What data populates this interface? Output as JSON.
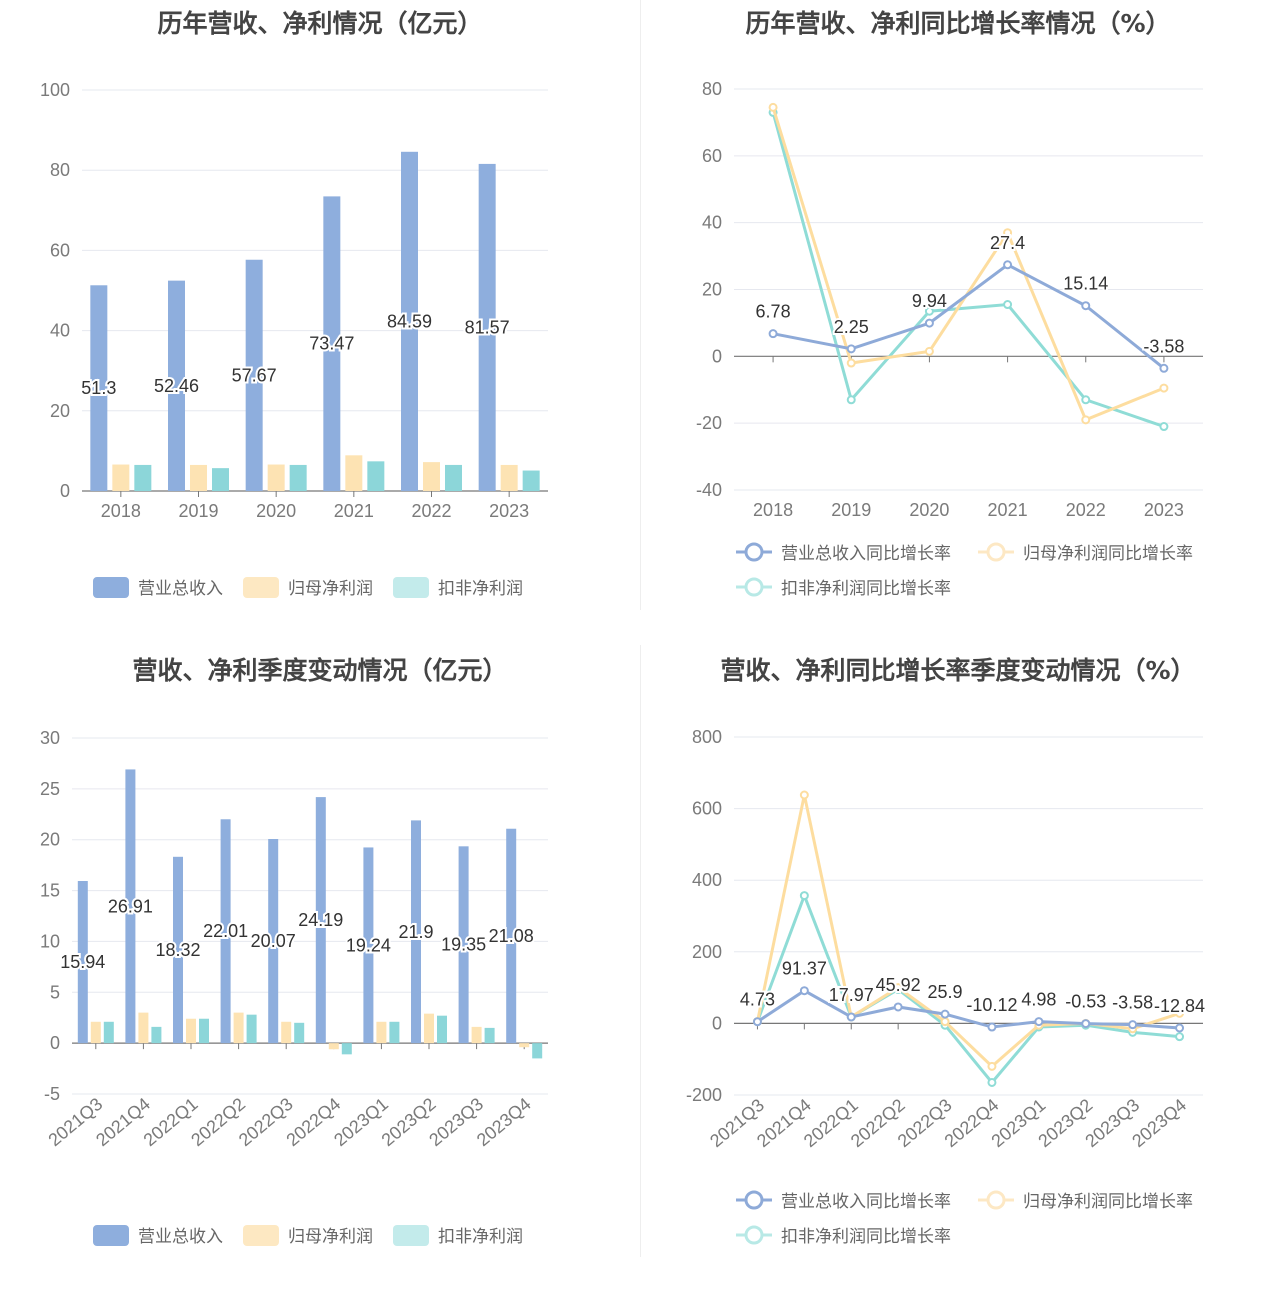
{
  "colors": {
    "revenue": "#8eaedd",
    "net_profit": "#fde3b3",
    "deducted_profit": "#8cd6d9",
    "rev_line": "#8eaad8",
    "np_line": "#fddd9f",
    "dp_line": "#8fdcd6"
  },
  "chart_data": [
    {
      "id": "annual-amounts",
      "type": "bar",
      "title": "历年营收、净利情况（亿元）",
      "categories": [
        "2018",
        "2019",
        "2020",
        "2021",
        "2022",
        "2023"
      ],
      "ylim": [
        0,
        100
      ],
      "yticks": [
        0,
        20,
        40,
        60,
        80,
        100
      ],
      "grid": true,
      "legend_position": "bottom",
      "series": [
        {
          "name": "营业总收入",
          "values": [
            51.3,
            52.46,
            57.67,
            73.47,
            84.59,
            81.57
          ],
          "labels": [
            "51.3",
            "52.46",
            "57.67",
            "73.47",
            "84.59",
            "81.57"
          ]
        },
        {
          "name": "归母净利润",
          "values": [
            6.6,
            6.5,
            6.6,
            8.9,
            7.2,
            6.5
          ]
        },
        {
          "name": "扣非净利润",
          "values": [
            6.5,
            5.7,
            6.5,
            7.4,
            6.5,
            5.1
          ]
        }
      ]
    },
    {
      "id": "annual-growth",
      "type": "line",
      "title": "历年营收、净利同比增长率情况（%）",
      "categories": [
        "2018",
        "2019",
        "2020",
        "2021",
        "2022",
        "2023"
      ],
      "ylim": [
        -40,
        80
      ],
      "yticks": [
        -40,
        -20,
        0,
        20,
        40,
        60,
        80
      ],
      "grid": true,
      "legend_position": "bottom",
      "series": [
        {
          "name": "营业总收入同比增长率",
          "values": [
            6.78,
            2.25,
            9.94,
            27.4,
            15.14,
            -3.58
          ],
          "labels": [
            "6.78",
            "2.25",
            "9.94",
            "27.4",
            "15.14",
            "-3.58"
          ]
        },
        {
          "name": "归母净利润同比增长率",
          "values": [
            74.5,
            -2,
            1.5,
            37,
            -19,
            -9.5
          ]
        },
        {
          "name": "扣非净利润同比增长率",
          "values": [
            73,
            -13,
            13.5,
            15.5,
            -13,
            -21
          ]
        }
      ]
    },
    {
      "id": "quarterly-amounts",
      "type": "bar",
      "title": "营收、净利季度变动情况（亿元）",
      "categories": [
        "2021Q3",
        "2021Q4",
        "2022Q1",
        "2022Q2",
        "2022Q3",
        "2022Q4",
        "2023Q1",
        "2023Q2",
        "2023Q3",
        "2023Q4"
      ],
      "ylim": [
        -5,
        30
      ],
      "yticks": [
        -5,
        0,
        5,
        10,
        15,
        20,
        25,
        30
      ],
      "grid": true,
      "legend_position": "bottom",
      "series": [
        {
          "name": "营业总收入",
          "values": [
            15.94,
            26.91,
            18.32,
            22.01,
            20.07,
            24.19,
            19.24,
            21.9,
            19.35,
            21.08
          ],
          "labels": [
            "15.94",
            "26.91",
            "18.32",
            "22.01",
            "20.07",
            "24.19",
            "19.24",
            "21.9",
            "19.35",
            "21.08"
          ]
        },
        {
          "name": "归母净利润",
          "values": [
            2.1,
            3.0,
            2.4,
            3.0,
            2.1,
            -0.6,
            2.1,
            2.9,
            1.6,
            -0.4
          ]
        },
        {
          "name": "扣非净利润",
          "values": [
            2.1,
            1.6,
            2.4,
            2.8,
            2.0,
            -1.1,
            2.1,
            2.7,
            1.5,
            -1.5
          ]
        }
      ]
    },
    {
      "id": "quarterly-growth",
      "type": "line",
      "title": "营收、净利同比增长率季度变动情况（%）",
      "categories": [
        "2021Q3",
        "2021Q4",
        "2022Q1",
        "2022Q2",
        "2022Q3",
        "2022Q4",
        "2023Q1",
        "2023Q2",
        "2023Q3",
        "2023Q4"
      ],
      "ylim": [
        -200,
        800
      ],
      "yticks": [
        -200,
        0,
        200,
        400,
        600,
        800
      ],
      "grid": true,
      "legend_position": "bottom",
      "series": [
        {
          "name": "营业总收入同比增长率",
          "values": [
            4.73,
            91.37,
            17.97,
            45.92,
            25.9,
            -10.12,
            4.98,
            -0.53,
            -3.58,
            -12.84
          ],
          "labels": [
            "4.73",
            "91.37",
            "17.97",
            "45.92",
            "25.9",
            "-10.12",
            "4.98",
            "-0.53",
            "-3.58",
            "-12.84"
          ]
        },
        {
          "name": "归母净利润同比增长率",
          "values": [
            5,
            638,
            18,
            100,
            5,
            -120,
            -5,
            0,
            -15,
            28
          ]
        },
        {
          "name": "扣非净利润同比增长率",
          "values": [
            5,
            357,
            18,
            95,
            -5,
            -165,
            -10,
            -5,
            -25,
            -37
          ]
        }
      ]
    }
  ]
}
